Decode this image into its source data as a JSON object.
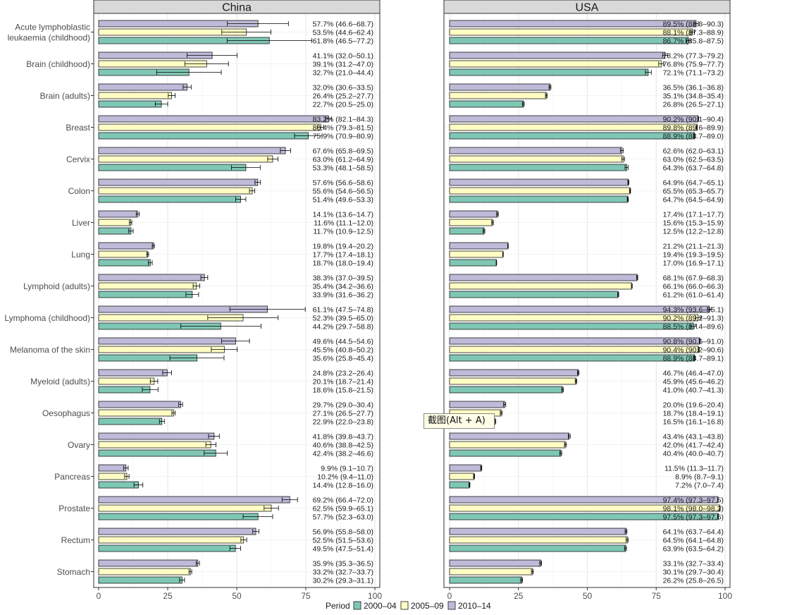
{
  "chart_data": {
    "type": "bar",
    "orientation": "horizontal",
    "facets": [
      "China",
      "USA"
    ],
    "xlim": [
      0,
      100
    ],
    "xticks": [
      0,
      25,
      50,
      75,
      100
    ],
    "legend_title": "Period",
    "legend_position": "bottom",
    "periods": [
      {
        "name": "2000–04",
        "color": "#7fc7b5"
      },
      {
        "name": "2005–09",
        "color": "#fffcc4"
      },
      {
        "name": "2010–14",
        "color": "#bebad8"
      }
    ],
    "categories": [
      {
        "label": [
          "Acute lymphoblastic",
          "leukaemia (childhood)"
        ],
        "China": [
          [
            61.8,
            46.5,
            77.2,
            "61.8% (46.5–77.2)"
          ],
          [
            53.5,
            44.6,
            62.4,
            "53.5% (44.6–62.4)"
          ],
          [
            57.7,
            46.6,
            68.7,
            "57.7% (46.6–68.7)"
          ]
        ],
        "USA": [
          [
            86.7,
            85.8,
            87.5,
            "86.7% (85.8–87.5)"
          ],
          [
            88.1,
            87.3,
            88.9,
            "88.1% (87.3–88.9)"
          ],
          [
            89.5,
            88.8,
            90.3,
            "89.5% (88.8–90.3)"
          ]
        ]
      },
      {
        "label": [
          "Brain (childhood)"
        ],
        "China": [
          [
            32.7,
            21.0,
            44.4,
            "32.7% (21.0–44.4)"
          ],
          [
            39.1,
            31.2,
            47.0,
            "39.1% (31.2–47.0)"
          ],
          [
            41.1,
            32.0,
            50.1,
            "41.1% (32.0–50.1)"
          ]
        ],
        "USA": [
          [
            72.1,
            71.1,
            73.2,
            "72.1% (71.1–73.2)"
          ],
          [
            76.8,
            75.9,
            77.7,
            "76.8% (75.9–77.7)"
          ],
          [
            78.2,
            77.3,
            79.2,
            "78.2% (77.3–79.2)"
          ]
        ]
      },
      {
        "label": [
          "Brain (adults)"
        ],
        "China": [
          [
            22.7,
            20.5,
            25.0,
            "22.7% (20.5–25.0)"
          ],
          [
            26.4,
            25.2,
            27.7,
            "26.4% (25.2–27.7)"
          ],
          [
            32.0,
            30.6,
            33.5,
            "32.0% (30.6–33.5)"
          ]
        ],
        "USA": [
          [
            26.8,
            26.5,
            27.1,
            "26.8% (26.5–27.1)"
          ],
          [
            35.1,
            34.8,
            35.4,
            "35.1% (34.8–35.4)"
          ],
          [
            36.5,
            36.1,
            36.8,
            "36.5% (36.1–36.8)"
          ]
        ]
      },
      {
        "label": [
          "Breast"
        ],
        "China": [
          [
            75.9,
            70.9,
            80.9,
            "75.9% (70.9–80.9)"
          ],
          [
            80.4,
            79.3,
            81.5,
            "80.4% (79.3–81.5)"
          ],
          [
            83.2,
            82.1,
            84.3,
            "83.2% (82.1–84.3)"
          ]
        ],
        "USA": [
          [
            88.9,
            88.7,
            89.0,
            "88.9% (88.7–89.0)"
          ],
          [
            89.8,
            89.6,
            89.9,
            "89.8% (89.6–89.9)"
          ],
          [
            90.2,
            90.1,
            90.4,
            "90.2% (90.1–90.4)"
          ]
        ]
      },
      {
        "label": [
          "Cervix"
        ],
        "China": [
          [
            53.3,
            48.1,
            58.5,
            "53.3% (48.1–58.5)"
          ],
          [
            63.0,
            61.2,
            64.9,
            "63.0% (61.2–64.9)"
          ],
          [
            67.6,
            65.8,
            69.5,
            "67.6% (65.8–69.5)"
          ]
        ],
        "USA": [
          [
            64.3,
            63.7,
            64.8,
            "64.3% (63.7–64.8)"
          ],
          [
            63.0,
            62.5,
            63.5,
            "63.0% (62.5–63.5)"
          ],
          [
            62.6,
            62.0,
            63.1,
            "62.6% (62.0–63.1)"
          ]
        ]
      },
      {
        "label": [
          "Colon"
        ],
        "China": [
          [
            51.4,
            49.6,
            53.3,
            "51.4% (49.6–53.3)"
          ],
          [
            55.6,
            54.6,
            56.5,
            "55.6% (54.6–56.5)"
          ],
          [
            57.6,
            56.6,
            58.6,
            "57.6% (56.6–58.6)"
          ]
        ],
        "USA": [
          [
            64.7,
            64.5,
            64.9,
            "64.7% (64.5–64.9)"
          ],
          [
            65.5,
            65.3,
            65.7,
            "65.5% (65.3–65.7)"
          ],
          [
            64.9,
            64.7,
            65.1,
            "64.9% (64.7–65.1)"
          ]
        ]
      },
      {
        "label": [
          "Liver"
        ],
        "China": [
          [
            11.7,
            10.9,
            12.5,
            "11.7% (10.9–12.5)"
          ],
          [
            11.6,
            11.1,
            12.0,
            "11.6% (11.1–12.0)"
          ],
          [
            14.1,
            13.6,
            14.7,
            "14.1% (13.6–14.7)"
          ]
        ],
        "USA": [
          [
            12.5,
            12.2,
            12.8,
            "12.5% (12.2–12.8)"
          ],
          [
            15.6,
            15.3,
            15.9,
            "15.6% (15.3–15.9)"
          ],
          [
            17.4,
            17.1,
            17.7,
            "17.4% (17.1–17.7)"
          ]
        ]
      },
      {
        "label": [
          "Lung"
        ],
        "China": [
          [
            18.7,
            18.0,
            19.4,
            "18.7% (18.0–19.4)"
          ],
          [
            17.7,
            17.4,
            18.1,
            "17.7% (17.4–18.1)"
          ],
          [
            19.8,
            19.4,
            20.2,
            "19.8% (19.4–20.2)"
          ]
        ],
        "USA": [
          [
            17.0,
            16.9,
            17.1,
            "17.0% (16.9–17.1)"
          ],
          [
            19.4,
            19.3,
            19.5,
            "19.4% (19.3–19.5)"
          ],
          [
            21.2,
            21.1,
            21.3,
            "21.2% (21.1–21.3)"
          ]
        ]
      },
      {
        "label": [
          "Lymphoid (adults)"
        ],
        "China": [
          [
            33.9,
            31.6,
            36.2,
            "33.9% (31.6–36.2)"
          ],
          [
            35.4,
            34.2,
            36.6,
            "35.4% (34.2–36.6)"
          ],
          [
            38.3,
            37.0,
            39.5,
            "38.3% (37.0–39.5)"
          ]
        ],
        "USA": [
          [
            61.2,
            61.0,
            61.4,
            "61.2% (61.0–61.4)"
          ],
          [
            66.1,
            66.0,
            66.3,
            "66.1% (66.0–66.3)"
          ],
          [
            68.1,
            67.9,
            68.3,
            "68.1% (67.9–68.3)"
          ]
        ]
      },
      {
        "label": [
          "Lymphoma (childhood)"
        ],
        "China": [
          [
            44.2,
            29.7,
            58.8,
            "44.2% (29.7–58.8)"
          ],
          [
            52.3,
            39.5,
            65.0,
            "52.3% (39.5–65.0)"
          ],
          [
            61.1,
            47.5,
            74.8,
            "61.1% (47.5–74.8)"
          ]
        ],
        "USA": [
          [
            88.5,
            87.4,
            89.6,
            "88.5% (87.4–89.6)"
          ],
          [
            90.2,
            89.2,
            91.3,
            "90.2% (89.2–91.3)"
          ],
          [
            94.3,
            93.6,
            95.1,
            "94.3% (93.6–95.1)"
          ]
        ]
      },
      {
        "label": [
          "Melanoma of the skin"
        ],
        "China": [
          [
            35.6,
            25.8,
            45.4,
            "35.6% (25.8–45.4)"
          ],
          [
            45.5,
            40.8,
            50.2,
            "45.5% (40.8–50.2)"
          ],
          [
            49.6,
            44.5,
            54.6,
            "49.6% (44.5–54.6)"
          ]
        ],
        "USA": [
          [
            88.9,
            88.7,
            89.1,
            "88.9% (88.7–89.1)"
          ],
          [
            90.4,
            90.2,
            90.6,
            "90.4% (90.2–90.6)"
          ],
          [
            90.8,
            90.6,
            91.0,
            "90.8% (90.6–91.0)"
          ]
        ]
      },
      {
        "label": [
          "Myeloid (adults)"
        ],
        "China": [
          [
            18.6,
            15.8,
            21.5,
            "18.6% (15.8–21.5)"
          ],
          [
            20.1,
            18.7,
            21.4,
            "20.1% (18.7–21.4)"
          ],
          [
            24.8,
            23.2,
            26.4,
            "24.8% (23.2–26.4)"
          ]
        ],
        "USA": [
          [
            41.0,
            40.7,
            41.3,
            "41.0% (40.7–41.3)"
          ],
          [
            45.9,
            45.6,
            46.2,
            "45.9% (45.6–46.2)"
          ],
          [
            46.7,
            46.4,
            47.0,
            "46.7% (46.4–47.0)"
          ]
        ]
      },
      {
        "label": [
          "Oesophagus"
        ],
        "China": [
          [
            22.9,
            22.0,
            23.8,
            "22.9% (22.0–23.8)"
          ],
          [
            27.1,
            26.5,
            27.7,
            "27.1% (26.5–27.7)"
          ],
          [
            29.7,
            29.0,
            30.4,
            "29.7% (29.0–30.4)"
          ]
        ],
        "USA": [
          [
            16.5,
            16.1,
            16.8,
            "16.5% (16.1–16.8)"
          ],
          [
            18.7,
            18.4,
            19.1,
            "18.7% (18.4–19.1)"
          ],
          [
            20.0,
            19.6,
            20.4,
            "20.0% (19.6–20.4)"
          ]
        ]
      },
      {
        "label": [
          "Ovary"
        ],
        "China": [
          [
            42.4,
            38.2,
            46.6,
            "42.4% (38.2–46.6)"
          ],
          [
            40.6,
            38.8,
            42.5,
            "40.6% (38.8–42.5)"
          ],
          [
            41.8,
            39.8,
            43.7,
            "41.8% (39.8–43.7)"
          ]
        ],
        "USA": [
          [
            40.4,
            40.0,
            40.7,
            "40.4% (40.0–40.7)"
          ],
          [
            42.0,
            41.7,
            42.4,
            "42.0% (41.7–42.4)"
          ],
          [
            43.4,
            43.1,
            43.8,
            "43.4% (43.1–43.8)"
          ]
        ]
      },
      {
        "label": [
          "Pancreas"
        ],
        "China": [
          [
            14.4,
            12.8,
            16.0,
            "14.4% (12.8–16.0)"
          ],
          [
            10.2,
            9.4,
            11.0,
            "10.2% (9.4–11.0)"
          ],
          [
            9.9,
            9.1,
            10.7,
            "9.9% (9.1–10.7)"
          ]
        ],
        "USA": [
          [
            7.2,
            7.0,
            7.4,
            "7.2% (7.0–7.4)"
          ],
          [
            8.9,
            8.7,
            9.1,
            "8.9% (8.7–9.1)"
          ],
          [
            11.5,
            11.3,
            11.7,
            "11.5% (11.3–11.7)"
          ]
        ]
      },
      {
        "label": [
          "Prostate"
        ],
        "China": [
          [
            57.7,
            52.3,
            63.0,
            "57.7% (52.3–63.0)"
          ],
          [
            62.5,
            59.9,
            65.1,
            "62.5% (59.9–65.1)"
          ],
          [
            69.2,
            66.4,
            72.0,
            "69.2% (66.4–72.0)"
          ]
        ],
        "USA": [
          [
            97.5,
            97.3,
            97.6,
            "97.5% (97.3–97.6)"
          ],
          [
            98.1,
            98.0,
            98.2,
            "98.1% (98.0–98.2)"
          ],
          [
            97.4,
            97.3,
            97.5,
            "97.4% (97.3–97.5)"
          ]
        ]
      },
      {
        "label": [
          "Rectum"
        ],
        "China": [
          [
            49.5,
            47.5,
            51.4,
            "49.5% (47.5–51.4)"
          ],
          [
            52.5,
            51.5,
            53.6,
            "52.5% (51.5–53.6)"
          ],
          [
            56.9,
            55.8,
            58.0,
            "56.9% (55.8–58.0)"
          ]
        ],
        "USA": [
          [
            63.9,
            63.5,
            64.2,
            "63.9% (63.5–64.2)"
          ],
          [
            64.5,
            64.1,
            64.8,
            "64.5% (64.1–64.8)"
          ],
          [
            64.1,
            63.7,
            64.4,
            "64.1% (63.7–64.4)"
          ]
        ]
      },
      {
        "label": [
          "Stomach"
        ],
        "China": [
          [
            30.2,
            29.3,
            31.1,
            "30.2% (29.3–31.1)"
          ],
          [
            33.2,
            32.7,
            33.7,
            "33.2% (32.7–33.7)"
          ],
          [
            35.9,
            35.3,
            36.5,
            "35.9% (35.3–36.5)"
          ]
        ],
        "USA": [
          [
            26.2,
            25.8,
            26.5,
            "26.2% (25.8–26.5)"
          ],
          [
            30.1,
            29.7,
            30.4,
            "30.1% (29.7–30.4)"
          ],
          [
            33.1,
            32.7,
            33.4,
            "33.1% (32.7–33.4)"
          ]
        ]
      }
    ]
  },
  "overlay": {
    "tooltip_text": "截图(Alt + A)"
  }
}
